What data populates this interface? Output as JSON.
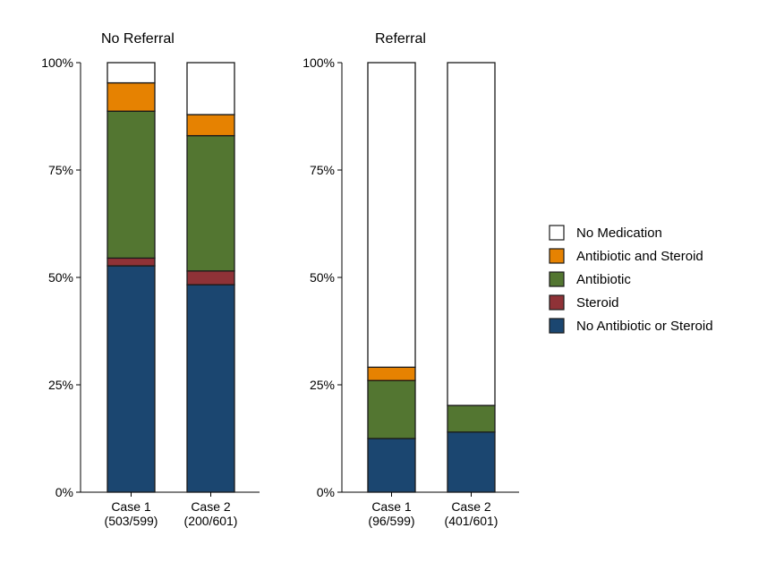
{
  "chart_data": {
    "type": "bar",
    "stacked": true,
    "y_format": "percent",
    "ylim": [
      0,
      100
    ],
    "yticks": [
      0,
      25,
      50,
      75,
      100
    ],
    "series_order_bottom_to_top": [
      "No Antibiotic or Steroid",
      "Steroid",
      "Antibiotic",
      "Antibiotic and Steroid",
      "No Medication"
    ],
    "colors": {
      "No Antibiotic or Steroid": "#1b4670",
      "Steroid": "#8f3237",
      "Antibiotic": "#537631",
      "Antibiotic and Steroid": "#e68201",
      "No Medication": "#ffffff"
    },
    "panels": [
      {
        "title": "No Referral",
        "categories": [
          {
            "line1": "Case 1",
            "line2": "(503/599)"
          },
          {
            "line1": "Case 2",
            "line2": "(200/601)"
          }
        ],
        "series": [
          {
            "name": "No Antibiotic or Steroid",
            "values": [
              52.7,
              48.3
            ]
          },
          {
            "name": "Steroid",
            "values": [
              1.8,
              3.2
            ]
          },
          {
            "name": "Antibiotic",
            "values": [
              34.2,
              31.5
            ]
          },
          {
            "name": "Antibiotic and Steroid",
            "values": [
              6.6,
              4.9
            ]
          },
          {
            "name": "No Medication",
            "values": [
              4.7,
              12.1
            ]
          }
        ]
      },
      {
        "title": "Referral",
        "categories": [
          {
            "line1": "Case 1",
            "line2": "(96/599)"
          },
          {
            "line1": "Case 2",
            "line2": "(401/601)"
          }
        ],
        "series": [
          {
            "name": "No Antibiotic or Steroid",
            "values": [
              12.5,
              14.0
            ]
          },
          {
            "name": "Steroid",
            "values": [
              0.0,
              0.0
            ]
          },
          {
            "name": "Antibiotic",
            "values": [
              13.5,
              6.2
            ]
          },
          {
            "name": "Antibiotic and Steroid",
            "values": [
              3.1,
              0.0
            ]
          },
          {
            "name": "No Medication",
            "values": [
              70.9,
              79.8
            ]
          }
        ]
      }
    ],
    "legend": {
      "position": "right",
      "entries": [
        "No Medication",
        "Antibiotic and Steroid",
        "Antibiotic",
        "Steroid",
        "No Antibiotic or Steroid"
      ]
    }
  }
}
